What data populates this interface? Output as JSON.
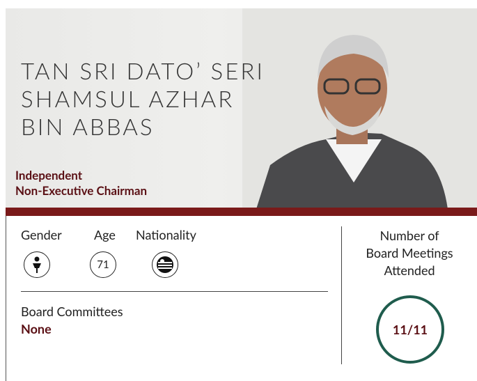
{
  "profile": {
    "name_lines": [
      "TAN SRI DATO’ SERI",
      "SHAMSUL AZHAR",
      "BIN ABBAS"
    ],
    "role_lines": [
      "Independent",
      "Non-Executive Chairman"
    ],
    "attributes": {
      "gender_label": "Gender",
      "age_label": "Age",
      "age": "71",
      "nationality_label": "Nationality"
    },
    "committees": {
      "label": "Board Committees",
      "value": "None"
    },
    "meetings": {
      "label_lines": [
        "Number of",
        "Board Meetings",
        "Attended"
      ],
      "value": "11/11"
    }
  }
}
